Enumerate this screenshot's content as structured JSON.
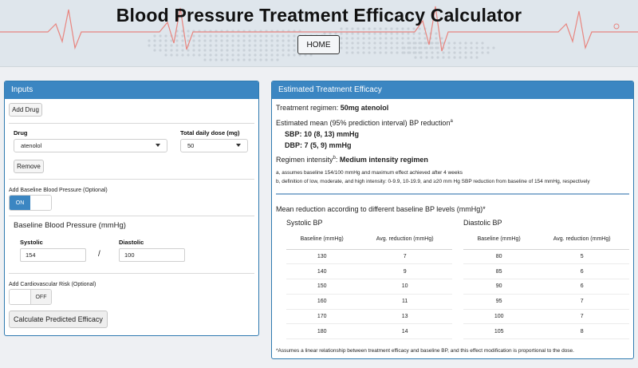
{
  "header": {
    "title": "Blood Pressure Treatment Efficacy Calculator",
    "home_label": "HOME"
  },
  "inputs": {
    "panel_title": "Inputs",
    "add_drug_label": "Add Drug",
    "drug_label": "Drug",
    "drug_value": "atenolol",
    "dose_label": "Total daily dose (mg)",
    "dose_value": "50",
    "remove_label": "Remove",
    "baseline_toggle_label": "Add Baseline Blood Pressure (Optional)",
    "baseline_toggle_state": "ON",
    "baseline_heading": "Baseline Blood Pressure (mmHg)",
    "systolic_label": "Systolic",
    "systolic_value": "154",
    "separator": "/",
    "diastolic_label": "Diastolic",
    "diastolic_value": "100",
    "cv_toggle_label": "Add Cardiovascular Risk (Optional)",
    "cv_toggle_state": "OFF",
    "calculate_label": "Calculate Predicted Efficacy"
  },
  "efficacy": {
    "panel_title": "Estimated Treatment Efficacy",
    "regimen_prefix": "Treatment regimen: ",
    "regimen_value": "50mg atenolol",
    "estimated_label": "Estimated mean (95% prediction interval) BP reduction",
    "estimated_sup": "a",
    "sbp": "SBP: 10 (8, 13) mmHg",
    "dbp": "DBP: 7 (5, 9) mmHg",
    "intensity_prefix": "Regimen intensity",
    "intensity_sup": "b",
    "intensity_colon": ": ",
    "intensity_value": "Medium intensity regimen",
    "footnote_a": "a, assumes baseline 154/100 mmHg and maximum effect achieved after 4 weeks",
    "footnote_b": "b, definition of low, moderate, and high intensity: 0-9.9, 10-19.9, and ≥20 mm Hg SBP reduction from baseline of 154 mmHg, respectively",
    "mean_reduction_heading": "Mean reduction according to different baseline BP levels (mmHg)*",
    "systolic_heading": "Systolic BP",
    "diastolic_heading": "Diastolic BP",
    "col_baseline": "Baseline (mmHg)",
    "col_reduction": "Avg. reduction (mmHg)",
    "systolic_rows": [
      [
        "130",
        "7"
      ],
      [
        "140",
        "9"
      ],
      [
        "150",
        "10"
      ],
      [
        "160",
        "11"
      ],
      [
        "170",
        "13"
      ],
      [
        "180",
        "14"
      ]
    ],
    "diastolic_rows": [
      [
        "80",
        "5"
      ],
      [
        "85",
        "6"
      ],
      [
        "90",
        "6"
      ],
      [
        "95",
        "7"
      ],
      [
        "100",
        "7"
      ],
      [
        "105",
        "8"
      ]
    ],
    "assumption_note": "*Assumes a linear relationship between treatment efficacy and baseline BP, and this effect modification is proportional to the dose."
  },
  "colors": {
    "accent": "#3b86c2",
    "ecg_line": "#e8857f"
  }
}
